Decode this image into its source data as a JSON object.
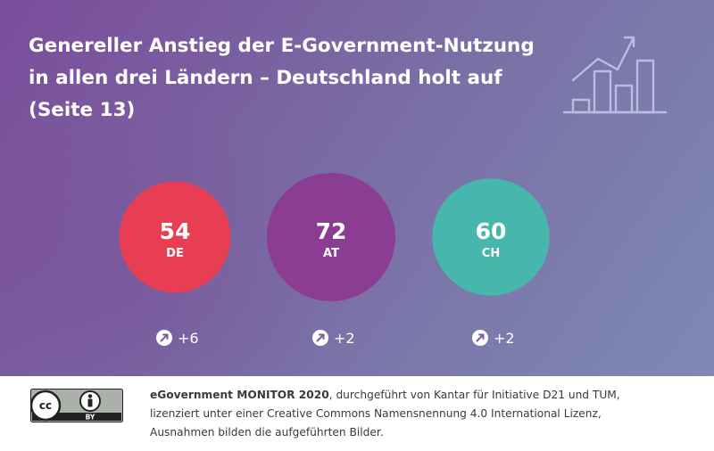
{
  "title": {
    "line1": "Genereller Anstieg der E-Government-Nutzung",
    "line2": "in allen drei Ländern – Deutschland holt auf",
    "line3": "(Seite 13)"
  },
  "chart_data": {
    "type": "bubble",
    "categories": [
      "DE",
      "AT",
      "CH"
    ],
    "values": [
      54,
      72,
      60
    ],
    "changes": [
      "+6",
      "+2",
      "+2"
    ],
    "colors": [
      "#e83e53",
      "#8a3d93",
      "#47b7ae"
    ],
    "unit": "",
    "title": "Genereller Anstieg der E-Government-Nutzung in allen drei Ländern – Deutschland holt auf (Seite 13)"
  },
  "footer": {
    "brand": "eGovernment MONITOR 2020",
    "line1_rest": ", durchgeführt von Kantar für Initiative D21 und TUM,",
    "line2": "lizenziert unter einer Creative Commons Namensnennung 4.0 International Lizenz,",
    "line3": "Ausnahmen bilden die aufgeführten Bilder.",
    "license_badge": {
      "cc": "cc",
      "by": "BY"
    }
  }
}
